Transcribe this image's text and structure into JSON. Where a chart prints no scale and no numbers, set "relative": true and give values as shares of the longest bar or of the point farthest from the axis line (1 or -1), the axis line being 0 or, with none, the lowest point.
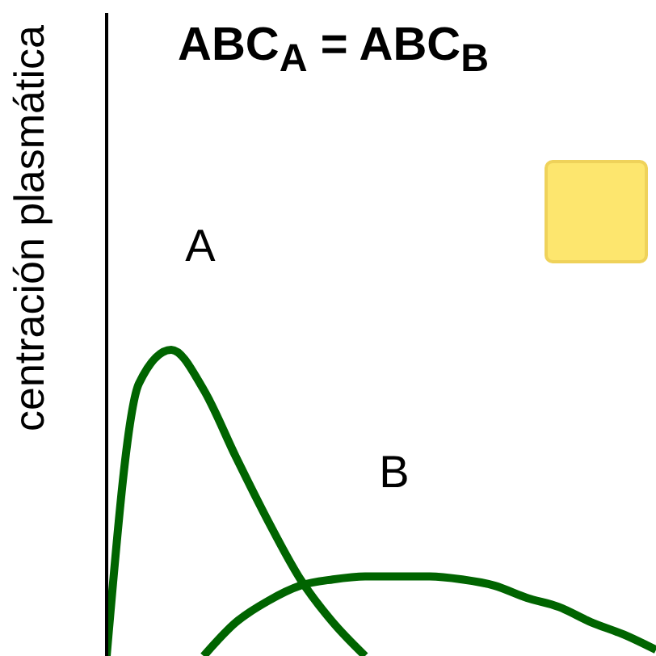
{
  "chart_data": {
    "type": "line",
    "title": "ABC$_{A}$ = ABC$_{B}$",
    "ylabel": "centración plasmática",
    "relative": true,
    "marker": "none",
    "categories": [
      null,
      null,
      null,
      null,
      null,
      null,
      null,
      null,
      null,
      null,
      null,
      null,
      null,
      null,
      null,
      null,
      null,
      null
    ],
    "series": [
      {
        "name": "A",
        "color": "#006400",
        "values": [
          0,
          0.89,
          1,
          0.87,
          0.65,
          0.44,
          0.25,
          0.11,
          0,
          null,
          null,
          null,
          null,
          null,
          null,
          null,
          null,
          null
        ]
      },
      {
        "name": "B",
        "color": "#006400",
        "values": [
          null,
          null,
          null,
          0,
          0.11,
          0.18,
          0.23,
          0.25,
          0.26,
          0.26,
          0.26,
          0.25,
          0.23,
          0.19,
          0.16,
          0.11,
          0.07,
          0.02
        ]
      }
    ]
  }
}
